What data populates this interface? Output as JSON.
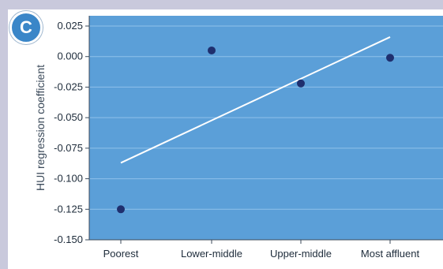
{
  "badge": {
    "label": "C"
  },
  "colors": {
    "plot_bg": "#5b9fd8",
    "grid": "#8fc1ea",
    "point": "#1f2f6e",
    "trend": "#ffffff",
    "badge": "#3a86c8",
    "frame": "#c9c9dc"
  },
  "chart_data": {
    "type": "scatter",
    "title": "",
    "xlabel": "",
    "ylabel": "HUI regression coefficient",
    "categories": [
      "Poorest",
      "Lower-middle",
      "Upper-middle",
      "Most affluent"
    ],
    "values": [
      -0.125,
      0.005,
      -0.022,
      -0.001
    ],
    "yticks": [
      "0.025",
      "0.000",
      "-0.025",
      "-0.050",
      "-0.075",
      "-0.100",
      "-0.125",
      "-0.150"
    ],
    "ytick_values": [
      0.025,
      0.0,
      -0.025,
      -0.05,
      -0.075,
      -0.1,
      -0.125,
      -0.15
    ],
    "ylim": [
      -0.15,
      0.035
    ],
    "grid": true,
    "trendline": {
      "x_start_category": "Poorest",
      "y_start": -0.087,
      "x_end_category": "Most affluent",
      "y_end": 0.016
    }
  }
}
